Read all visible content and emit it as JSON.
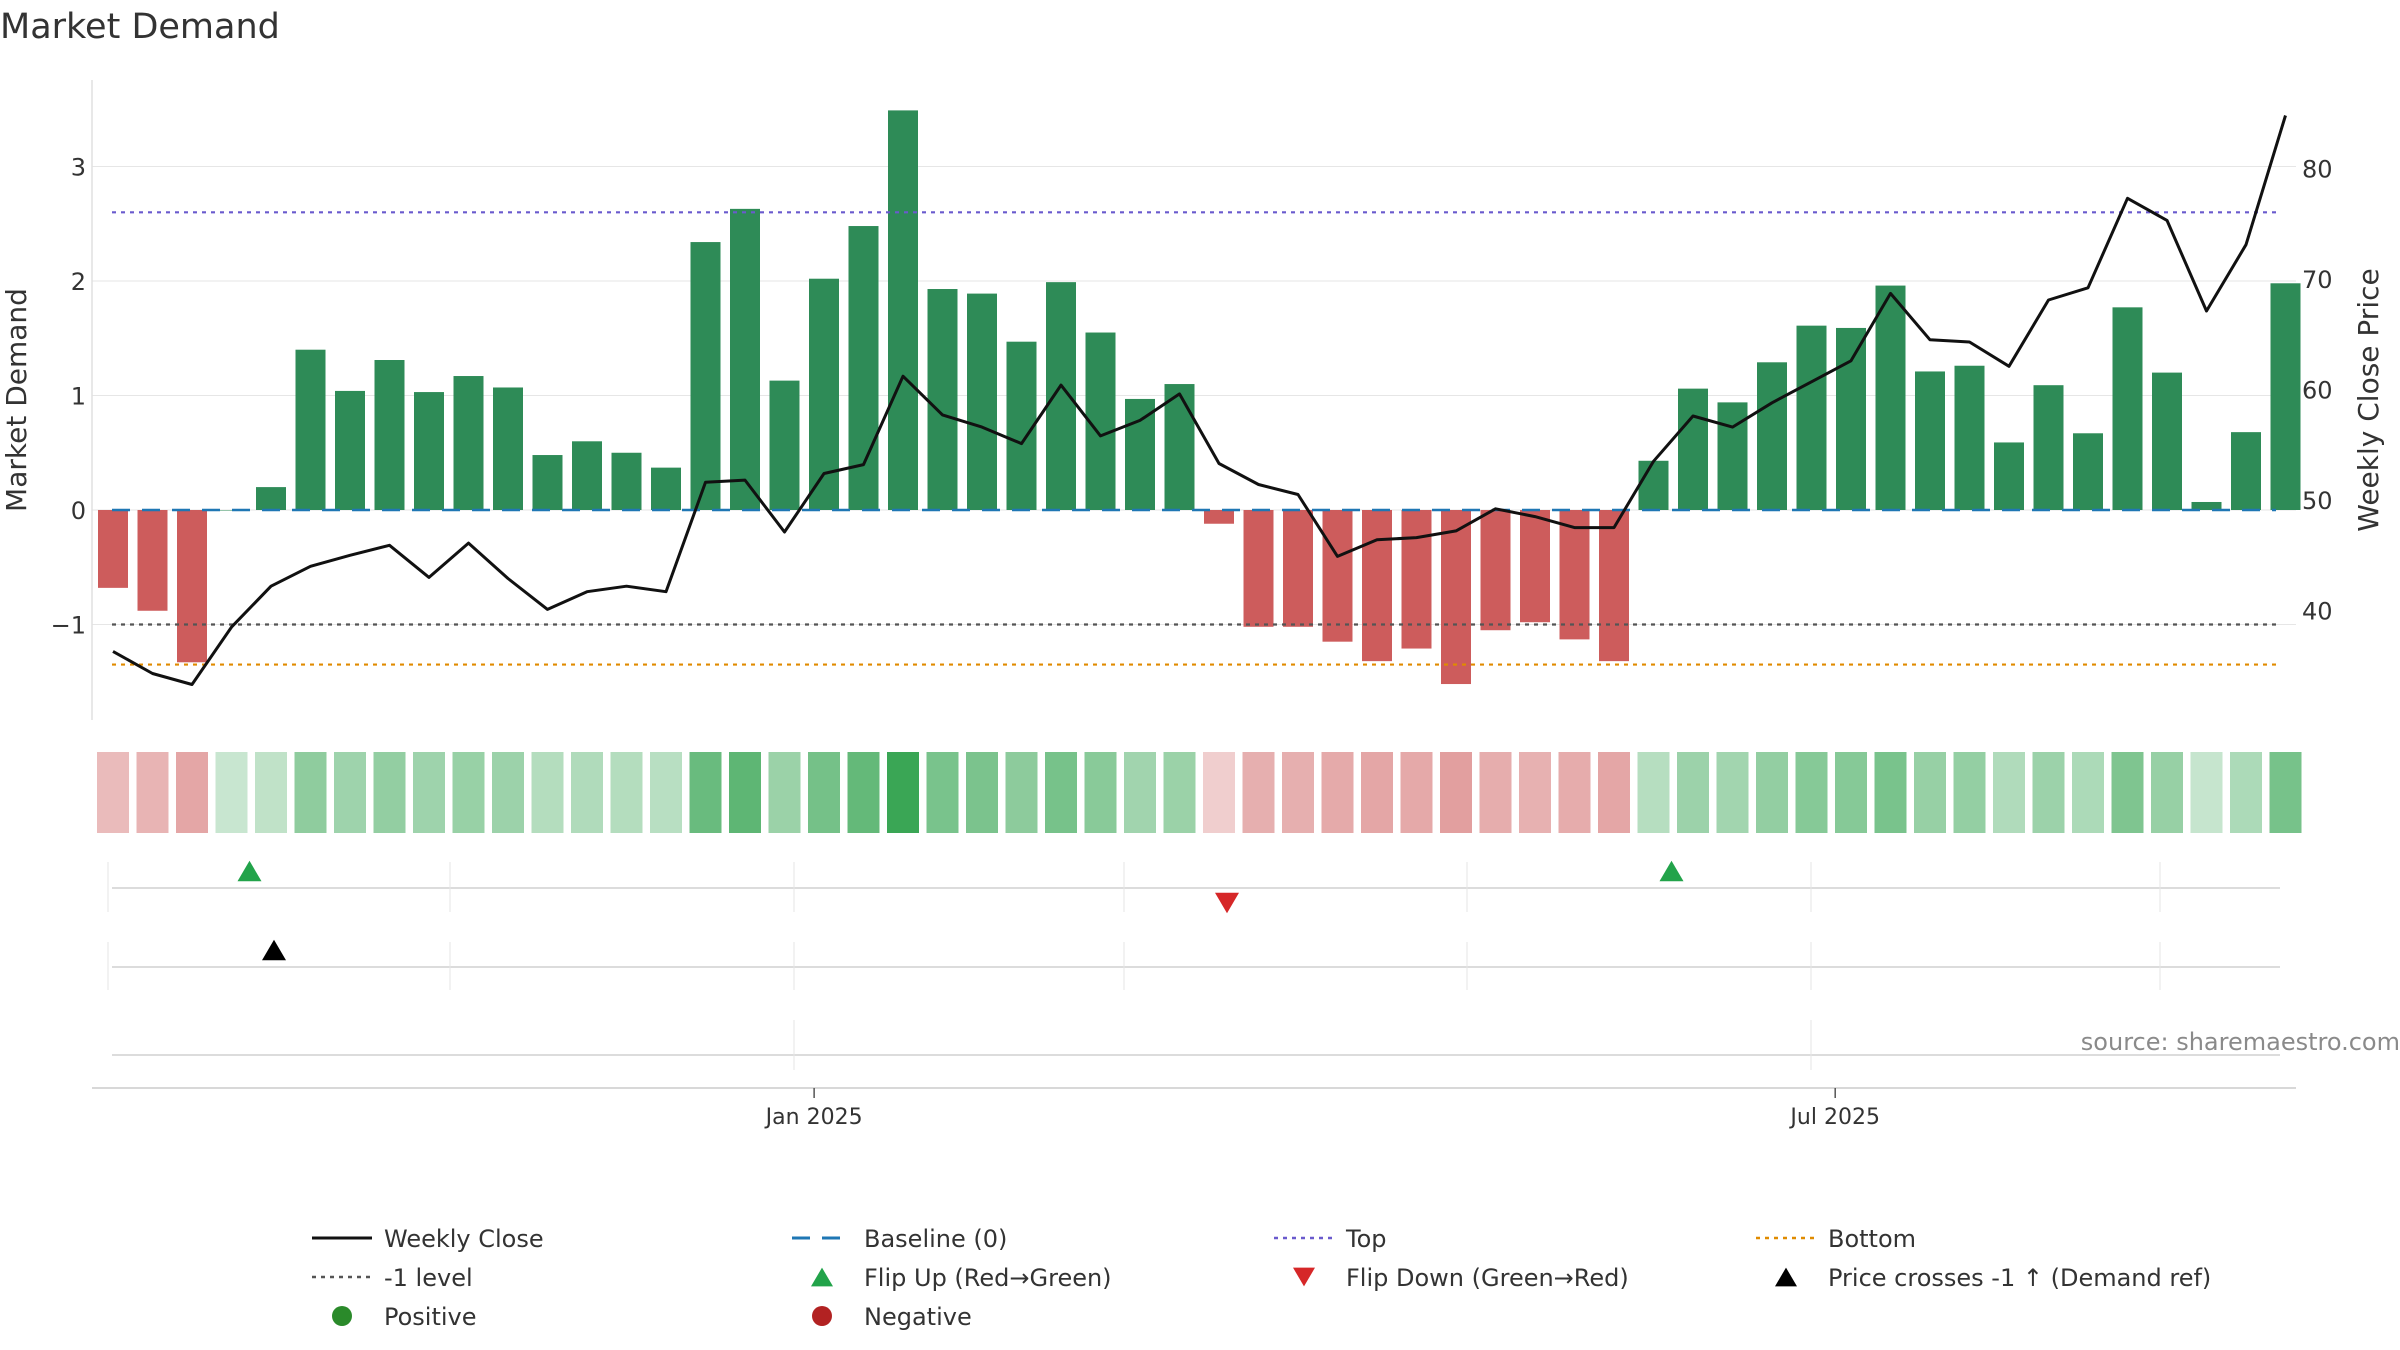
{
  "chart_data": {
    "type": "bar",
    "title": "Market Demand",
    "ylabel_left": "Market Demand",
    "ylabel_right": "Weekly Close Price",
    "ylim_left": [
      -1.8,
      3.55
    ],
    "ylim_right": [
      30.5,
      86
    ],
    "left_ticks": [
      3,
      2,
      1,
      0,
      -1
    ],
    "left_tick_labels": [
      "3",
      "2",
      "1",
      "0",
      "−1"
    ],
    "right_ticks": [
      80,
      70,
      60,
      50,
      40
    ],
    "right_tick_labels": [
      "80",
      "70",
      "60",
      "50",
      "40"
    ],
    "week_count": 56,
    "demand": [
      -0.68,
      -0.88,
      -1.33,
      0.0,
      0.2,
      1.4,
      1.04,
      1.31,
      1.03,
      1.17,
      1.07,
      0.48,
      0.6,
      0.5,
      0.37,
      2.34,
      2.63,
      1.13,
      2.02,
      2.48,
      3.49,
      1.93,
      1.89,
      1.47,
      1.99,
      1.55,
      0.97,
      1.1,
      -0.12,
      -1.02,
      -1.02,
      -1.15,
      -1.32,
      -1.21,
      -1.52,
      -1.05,
      -0.98,
      -1.13,
      -1.32,
      0.43,
      1.06,
      0.94,
      1.29,
      1.61,
      1.59,
      1.96,
      1.21,
      1.26,
      0.59,
      1.09,
      0.67,
      1.77,
      1.2,
      0.07,
      0.68,
      1.98
    ],
    "weekly_close": [
      36.3,
      34.3,
      33.3,
      38.5,
      42.2,
      44.0,
      45.0,
      45.9,
      43.0,
      46.1,
      42.9,
      40.1,
      41.7,
      42.2,
      41.7,
      51.6,
      51.8,
      47.1,
      52.4,
      53.2,
      61.2,
      57.7,
      56.6,
      55.1,
      60.4,
      55.8,
      57.2,
      59.6,
      53.3,
      51.4,
      50.5,
      44.9,
      46.4,
      46.6,
      47.2,
      49.2,
      48.5,
      47.5,
      47.5,
      53.5,
      57.6,
      56.6,
      58.8,
      60.7,
      62.6,
      68.7,
      64.5,
      64.3,
      62.1,
      68.1,
      69.2,
      77.3,
      75.3,
      67.1,
      73.1,
      84.8
    ],
    "series": [
      {
        "name": "Market Demand",
        "kind": "bar",
        "axis": "left"
      },
      {
        "name": "Weekly Close",
        "kind": "line",
        "axis": "right"
      }
    ],
    "reference_lines": {
      "baseline": 0,
      "top": 2.6,
      "bottom": -1.35,
      "minus_one": -1
    },
    "flip_up_weeks": [
      3,
      39
    ],
    "flip_down_weeks": [
      28
    ],
    "price_cross_weeks": [
      4
    ],
    "x_ticks": [
      {
        "label": "Jan 2025",
        "week": 17.75
      },
      {
        "label": "Jul 2025",
        "week": 43.6
      }
    ],
    "colors": {
      "positive_bar": "#2e8b57",
      "negative_bar": "#cd5c5c",
      "close_line": "#111111",
      "baseline": "#1f77b4",
      "top": "#6a5acd",
      "bottom": "#e08b00",
      "minus_one": "#555555",
      "flip_up": "#22a34a",
      "flip_down": "#d62728",
      "price_cross": "#000000",
      "positive_dot": "#2a8a2a",
      "negative_dot": "#b22222",
      "heat_positive": "#3aa655",
      "heat_negative": "#cd5c5c",
      "grid": "#e6e6e6"
    },
    "source": "source: sharemaestro.com",
    "legend": [
      {
        "label": "Weekly Close",
        "marker": "solid-line",
        "color": "#111111"
      },
      {
        "label": "Baseline (0)",
        "marker": "dash-line",
        "color": "#1f77b4"
      },
      {
        "label": "Top",
        "marker": "dot-line",
        "color": "#6a5acd"
      },
      {
        "label": "Bottom",
        "marker": "dot-line",
        "color": "#e08b00"
      },
      {
        "label": "-1 level",
        "marker": "dot-line",
        "color": "#555555"
      },
      {
        "label": "Flip Up (Red→Green)",
        "marker": "triangle-up",
        "color": "#22a34a"
      },
      {
        "label": "Flip Down (Green→Red)",
        "marker": "triangle-down",
        "color": "#d62728"
      },
      {
        "label": "Price crosses -1 ↑ (Demand ref)",
        "marker": "triangle-up",
        "color": "#000000"
      },
      {
        "label": "Positive",
        "marker": "circle",
        "color": "#2a8a2a"
      },
      {
        "label": "Negative",
        "marker": "circle",
        "color": "#b22222"
      }
    ]
  }
}
